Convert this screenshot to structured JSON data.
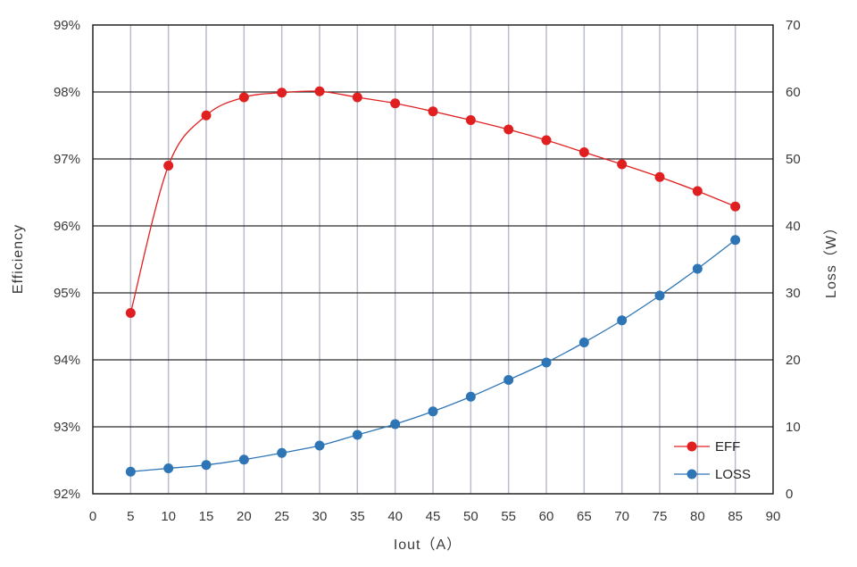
{
  "chart_data": {
    "type": "line",
    "xlabel": "Iout（A）",
    "ylabel": "Efficiency",
    "y2label": "Loss（W）",
    "xlim": [
      0,
      90
    ],
    "ylim": [
      92,
      99
    ],
    "y2lim": [
      0,
      70
    ],
    "x_ticks": [
      0,
      5,
      10,
      15,
      20,
      25,
      30,
      35,
      40,
      45,
      50,
      55,
      60,
      65,
      70,
      75,
      80,
      85,
      90
    ],
    "y_ticks": [
      "92%",
      "93%",
      "94%",
      "95%",
      "96%",
      "97%",
      "98%",
      "99%"
    ],
    "y2_ticks": [
      0,
      10,
      20,
      30,
      40,
      50,
      60,
      70
    ],
    "grid": true,
    "legend_position": "bottom-right",
    "x": [
      5,
      10,
      15,
      20,
      25,
      30,
      35,
      40,
      45,
      50,
      55,
      60,
      65,
      70,
      75,
      80,
      85
    ],
    "series": [
      {
        "name": "EFF",
        "axis": "left",
        "color": "#e02020",
        "values": [
          94.7,
          96.9,
          97.65,
          97.92,
          97.99,
          98.01,
          97.92,
          97.83,
          97.71,
          97.58,
          97.44,
          97.28,
          97.1,
          96.92,
          96.73,
          96.52,
          96.29
        ]
      },
      {
        "name": "LOSS",
        "axis": "right",
        "color": "#2e75b6",
        "values": [
          3.3,
          3.8,
          4.3,
          5.1,
          6.1,
          7.2,
          8.8,
          10.4,
          12.3,
          14.5,
          17.0,
          19.6,
          22.6,
          25.9,
          29.6,
          33.6,
          37.9
        ]
      }
    ]
  }
}
